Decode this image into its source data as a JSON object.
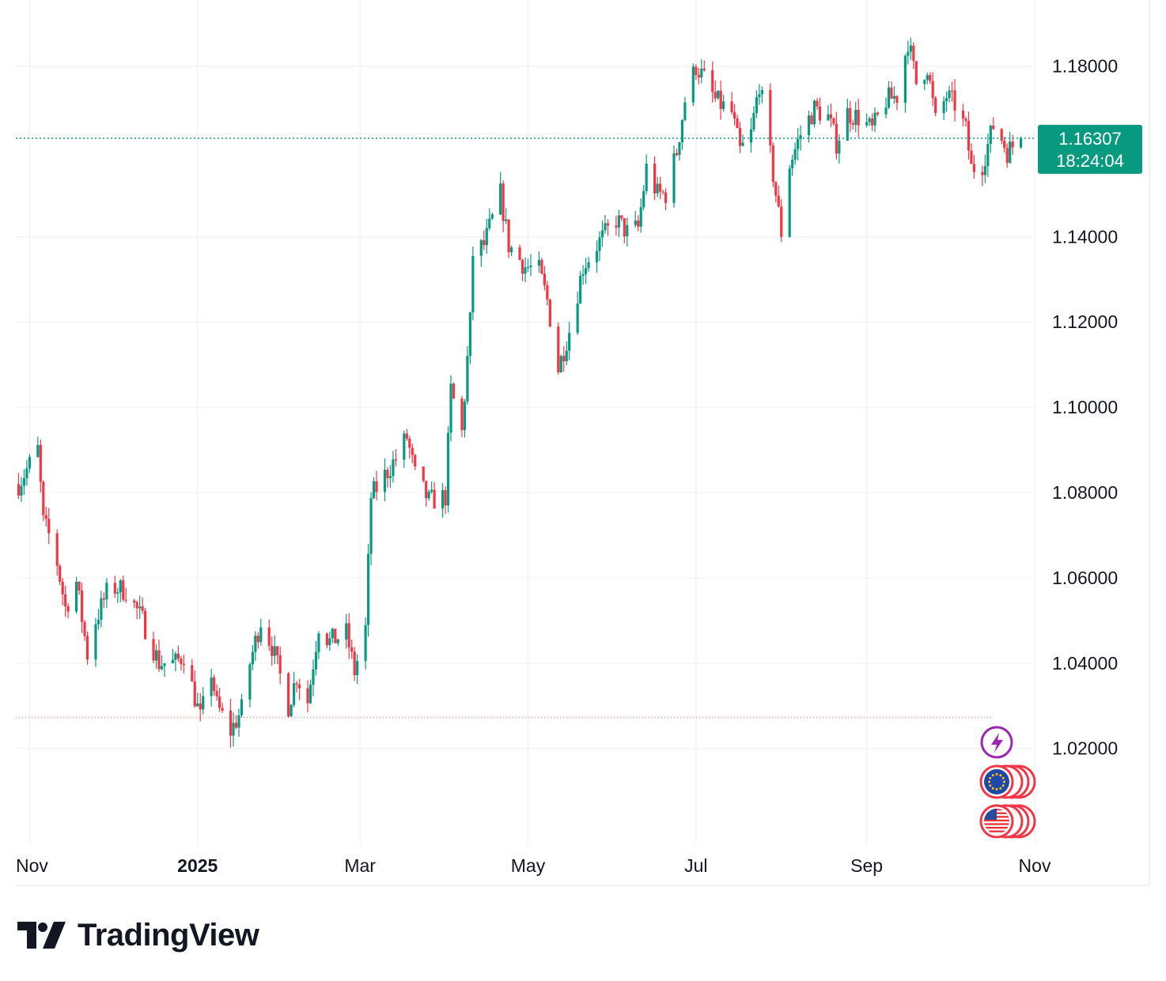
{
  "brand": {
    "name": "TradingView",
    "logo_icon": "tv-logo-icon"
  },
  "colors": {
    "up": "#089981",
    "down": "#F23645",
    "last_price_bg": "#089981",
    "grid": "#EEEFF2",
    "text": "#131722",
    "flash_icon": "#9C27B0"
  },
  "chart_data": {
    "type": "candlestick",
    "title": "",
    "symbol": "",
    "x_ticks": [
      {
        "label": "Nov",
        "date": "2024-11-01",
        "bold": false
      },
      {
        "label": "2025",
        "date": "2025-01-01",
        "bold": true
      },
      {
        "label": "Mar",
        "date": "2025-03-01",
        "bold": false
      },
      {
        "label": "May",
        "date": "2025-05-01",
        "bold": false
      },
      {
        "label": "Jul",
        "date": "2025-07-01",
        "bold": false
      },
      {
        "label": "Sep",
        "date": "2025-09-01",
        "bold": false
      },
      {
        "label": "Nov",
        "date": "2025-11-01",
        "bold": false
      }
    ],
    "y_ticks": [
      "1.18000",
      "1.14000",
      "1.12000",
      "1.10000",
      "1.08000",
      "1.06000",
      "1.04000",
      "1.02000"
    ],
    "y_tick_values": [
      1.18,
      1.14,
      1.12,
      1.1,
      1.08,
      1.06,
      1.04,
      1.02
    ],
    "x_range": [
      "2024-10-27",
      "2025-11-01"
    ],
    "ylim": [
      0.9975,
      1.1955
    ],
    "grid": true,
    "last_price": {
      "value": "1.16307",
      "countdown": "18:24:04"
    },
    "low_marker_price": 1.0272,
    "event_markers": [
      "flash-icon",
      "eu-flag-icon",
      "us-flag-icon"
    ],
    "anchors": [
      [
        "2024-10-28",
        1.082
      ],
      [
        "2024-11-04",
        1.09
      ],
      [
        "2024-11-06",
        1.073
      ],
      [
        "2024-11-10",
        1.067
      ],
      [
        "2024-11-14",
        1.053
      ],
      [
        "2024-11-18",
        1.059
      ],
      [
        "2024-11-22",
        1.042
      ],
      [
        "2024-11-25",
        1.05
      ],
      [
        "2024-11-30",
        1.058
      ],
      [
        "2024-12-06",
        1.057
      ],
      [
        "2024-12-12",
        1.05
      ],
      [
        "2024-12-18",
        1.04
      ],
      [
        "2024-12-24",
        1.04
      ],
      [
        "2024-12-27",
        1.042
      ],
      [
        "2025-01-02",
        1.027
      ],
      [
        "2025-01-06",
        1.038
      ],
      [
        "2025-01-08",
        1.03
      ],
      [
        "2025-01-13",
        1.024
      ],
      [
        "2025-01-17",
        1.029
      ],
      [
        "2025-01-20",
        1.04
      ],
      [
        "2025-01-24",
        1.05
      ],
      [
        "2025-01-28",
        1.044
      ],
      [
        "2025-02-03",
        1.03
      ],
      [
        "2025-02-06",
        1.037
      ],
      [
        "2025-02-10",
        1.031
      ],
      [
        "2025-02-14",
        1.049
      ],
      [
        "2025-02-18",
        1.045
      ],
      [
        "2025-02-24",
        1.047
      ],
      [
        "2025-02-27",
        1.038
      ],
      [
        "2025-03-03",
        1.048
      ],
      [
        "2025-03-05",
        1.079
      ],
      [
        "2025-03-10",
        1.084
      ],
      [
        "2025-03-14",
        1.088
      ],
      [
        "2025-03-18",
        1.093
      ],
      [
        "2025-03-21",
        1.084
      ],
      [
        "2025-03-26",
        1.078
      ],
      [
        "2025-04-01",
        1.079
      ],
      [
        "2025-04-03",
        1.104
      ],
      [
        "2025-04-07",
        1.094
      ],
      [
        "2025-04-10",
        1.12
      ],
      [
        "2025-04-11",
        1.136
      ],
      [
        "2025-04-15",
        1.138
      ],
      [
        "2025-04-21",
        1.15
      ],
      [
        "2025-04-24",
        1.138
      ],
      [
        "2025-04-30",
        1.133
      ],
      [
        "2025-05-05",
        1.132
      ],
      [
        "2025-05-08",
        1.125
      ],
      [
        "2025-05-12",
        1.109
      ],
      [
        "2025-05-16",
        1.118
      ],
      [
        "2025-05-21",
        1.133
      ],
      [
        "2025-05-26",
        1.138
      ],
      [
        "2025-06-02",
        1.144
      ],
      [
        "2025-06-06",
        1.141
      ],
      [
        "2025-06-10",
        1.142
      ],
      [
        "2025-06-13",
        1.156
      ],
      [
        "2025-06-17",
        1.15
      ],
      [
        "2025-06-20",
        1.15
      ],
      [
        "2025-06-24",
        1.16
      ],
      [
        "2025-06-27",
        1.172
      ],
      [
        "2025-07-01",
        1.18
      ],
      [
        "2025-07-04",
        1.177
      ],
      [
        "2025-07-08",
        1.172
      ],
      [
        "2025-07-14",
        1.169
      ],
      [
        "2025-07-17",
        1.16
      ],
      [
        "2025-07-21",
        1.164
      ],
      [
        "2025-07-24",
        1.176
      ],
      [
        "2025-07-28",
        1.159
      ],
      [
        "2025-08-01",
        1.141
      ],
      [
        "2025-08-04",
        1.157
      ],
      [
        "2025-08-08",
        1.164
      ],
      [
        "2025-08-13",
        1.17
      ],
      [
        "2025-08-18",
        1.168
      ],
      [
        "2025-08-21",
        1.162
      ],
      [
        "2025-08-25",
        1.169
      ],
      [
        "2025-08-29",
        1.168
      ],
      [
        "2025-09-03",
        1.165
      ],
      [
        "2025-09-08",
        1.172
      ],
      [
        "2025-09-12",
        1.173
      ],
      [
        "2025-09-16",
        1.186
      ],
      [
        "2025-09-19",
        1.176
      ],
      [
        "2025-09-23",
        1.18
      ],
      [
        "2025-09-26",
        1.167
      ],
      [
        "2025-09-30",
        1.173
      ],
      [
        "2025-10-03",
        1.171
      ],
      [
        "2025-10-07",
        1.165
      ],
      [
        "2025-10-09",
        1.156
      ],
      [
        "2025-10-13",
        1.157
      ],
      [
        "2025-10-17",
        1.166
      ],
      [
        "2025-10-20",
        1.163
      ],
      [
        "2025-10-22",
        1.16
      ],
      [
        "2025-10-27",
        1.1631
      ]
    ]
  }
}
